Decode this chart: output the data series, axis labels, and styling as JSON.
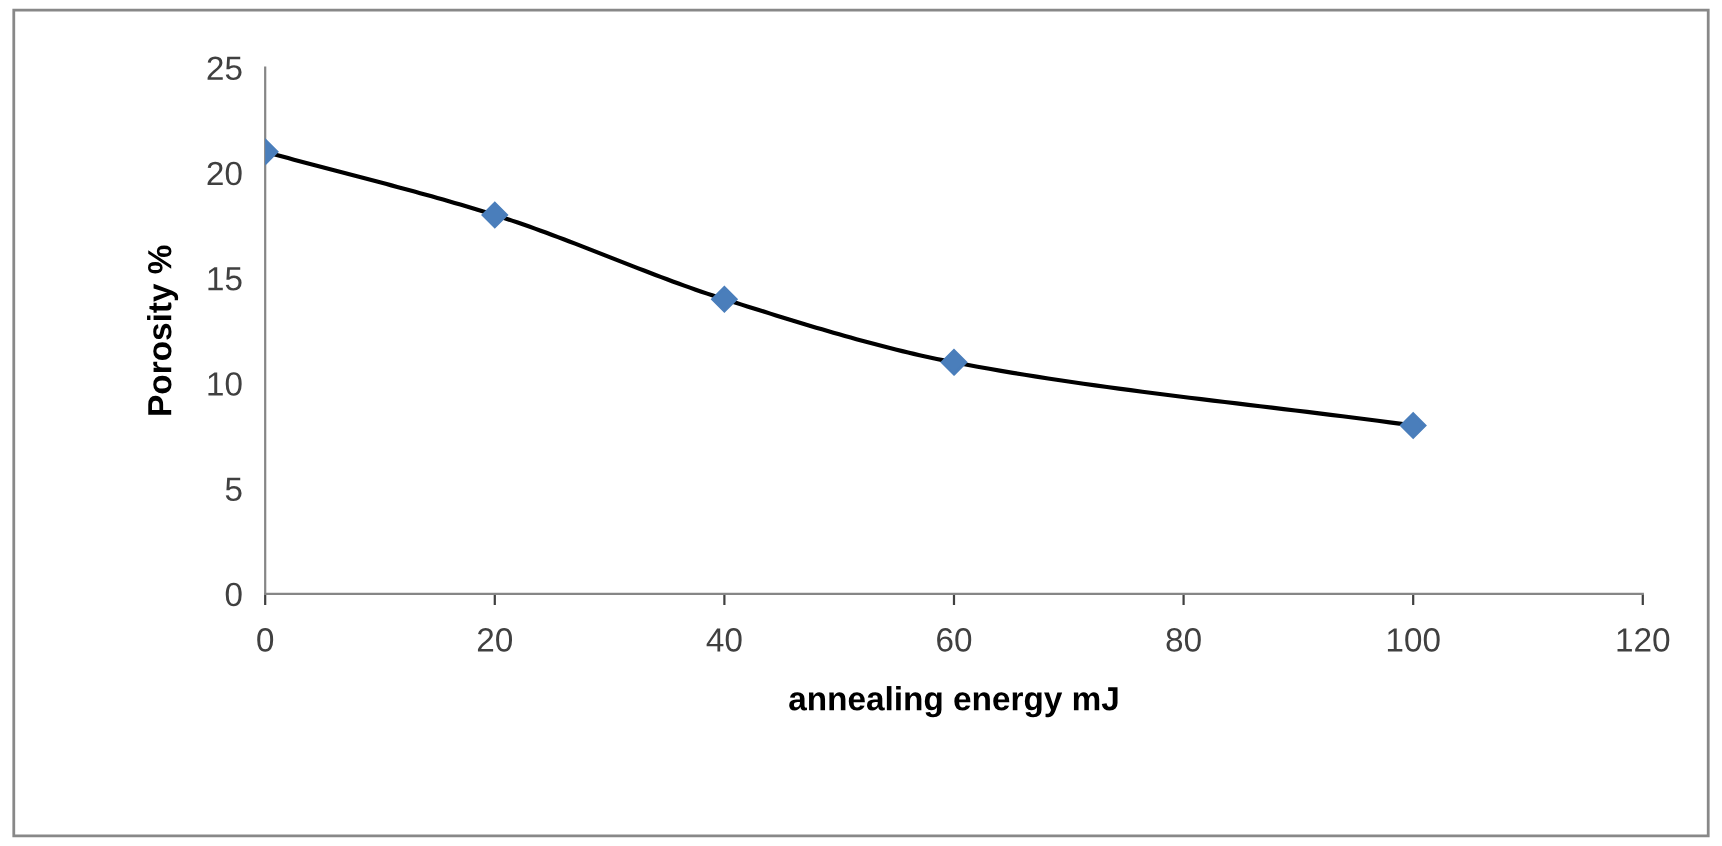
{
  "chart_data": {
    "type": "line",
    "xlabel": "annealing energy mJ",
    "ylabel": "Porosity %",
    "x": [
      0,
      20,
      40,
      60,
      100
    ],
    "series": [
      {
        "color": "#4a7ebb",
        "values": [
          21,
          18,
          14,
          11,
          8
        ]
      }
    ],
    "marker": "diamond",
    "line_style": "solid",
    "xlim": [
      0,
      120
    ],
    "xticks": [
      0,
      20,
      40,
      60,
      80,
      100,
      120
    ],
    "ylim": [
      0,
      25
    ],
    "yticks": [
      0,
      5,
      10,
      15,
      20,
      25
    ],
    "grid": false,
    "legend": false
  }
}
